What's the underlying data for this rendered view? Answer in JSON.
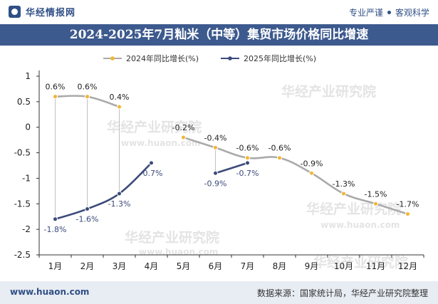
{
  "header": {
    "brand": "华经情报网",
    "slogan_left": "专业严谨",
    "slogan_right": "客观科学",
    "title": "2024-2025年7月籼米（中等）集贸市场价格同比增速"
  },
  "footer": {
    "url": "www.huaon.com",
    "source": "数据来源：国家统计局，华经产业研究院整理"
  },
  "watermark": {
    "cn": "华经产业研究院",
    "en": "www.huaon.com"
  },
  "colors": {
    "series_2024": "#aaaaaa",
    "series_2024_marker": "#f2b632",
    "series_2025": "#3b4a7a",
    "label_2025": "#3b4a7a",
    "title_bg": "#3d5a8e"
  },
  "chart_data": {
    "type": "line",
    "categories": [
      "1月",
      "2月",
      "3月",
      "4月",
      "5月",
      "6月",
      "7月",
      "8月",
      "9月",
      "10月",
      "11月",
      "12月"
    ],
    "series": [
      {
        "name": "2024年同比增长(%)",
        "values": [
          0.6,
          0.6,
          0.4,
          null,
          -0.2,
          -0.4,
          -0.6,
          -0.6,
          -0.9,
          -1.3,
          -1.5,
          -1.7
        ],
        "labels": [
          "0.6%",
          "0.6%",
          "0.4%",
          "",
          "-0.2%",
          "-0.4%",
          "-0.6%",
          "-0.6%",
          "-0.9%",
          "-1.3%",
          "-1.5%",
          "-1.7%"
        ]
      },
      {
        "name": "2025年同比增长(%)",
        "values": [
          -1.8,
          -1.6,
          -1.3,
          -0.7,
          null,
          -0.9,
          -0.7,
          null,
          null,
          null,
          null,
          null
        ],
        "labels": [
          "-1.8%",
          "-1.6%",
          "-1.3%",
          "-0.7%",
          "",
          "-0.9%",
          "-0.7%",
          "",
          "",
          "",
          "",
          ""
        ]
      }
    ],
    "ylim": [
      -2.5,
      1
    ],
    "yticks": [
      1,
      0.5,
      0,
      -0.5,
      -1,
      -1.5,
      -2,
      -2.5
    ],
    "ytick_labels": [
      "1",
      "0.5",
      "0",
      "-0.5",
      "-1",
      "-1.5",
      "-2",
      "-2.5"
    ],
    "legend": "top-center",
    "title": "2024-2025年7月籼米（中等）集贸市场价格同比增速"
  }
}
